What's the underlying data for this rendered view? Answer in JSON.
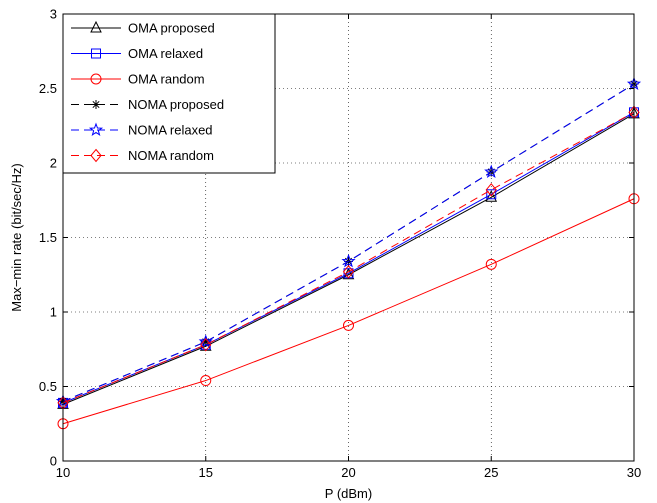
{
  "chart_data": {
    "type": "line",
    "xlabel": "P (dBm)",
    "ylabel": "Max−min rate (bit/sec/Hz)",
    "x": [
      10,
      15,
      20,
      25,
      30
    ],
    "xlim": [
      10,
      30
    ],
    "ylim": [
      0,
      3
    ],
    "xticks": [
      "10",
      "15",
      "20",
      "25",
      "30"
    ],
    "yticks": [
      "0",
      "0.5",
      "1",
      "1.5",
      "2",
      "2.5",
      "3"
    ],
    "grid": true,
    "legend_position": "top-left",
    "series": [
      {
        "name": "OMA proposed",
        "values": [
          0.38,
          0.77,
          1.25,
          1.77,
          2.33
        ],
        "color": "#000000",
        "dash": "solid",
        "marker": "triangle"
      },
      {
        "name": "OMA relaxed",
        "values": [
          0.39,
          0.78,
          1.26,
          1.79,
          2.34
        ],
        "color": "#0000ff",
        "dash": "solid",
        "marker": "square"
      },
      {
        "name": "OMA random",
        "values": [
          0.25,
          0.54,
          0.91,
          1.32,
          1.76
        ],
        "color": "#ff0000",
        "dash": "solid",
        "marker": "circle"
      },
      {
        "name": "NOMA proposed",
        "values": [
          0.4,
          0.8,
          1.34,
          1.94,
          2.53
        ],
        "color": "#000000",
        "dash": "dashed",
        "marker": "asterisk"
      },
      {
        "name": "NOMA relaxed",
        "values": [
          0.4,
          0.8,
          1.34,
          1.94,
          2.53
        ],
        "color": "#0000ff",
        "dash": "dashed",
        "marker": "star"
      },
      {
        "name": "NOMA random",
        "values": [
          0.39,
          0.78,
          1.27,
          1.82,
          2.34
        ],
        "color": "#ff0000",
        "dash": "dashed",
        "marker": "diamond"
      }
    ]
  }
}
